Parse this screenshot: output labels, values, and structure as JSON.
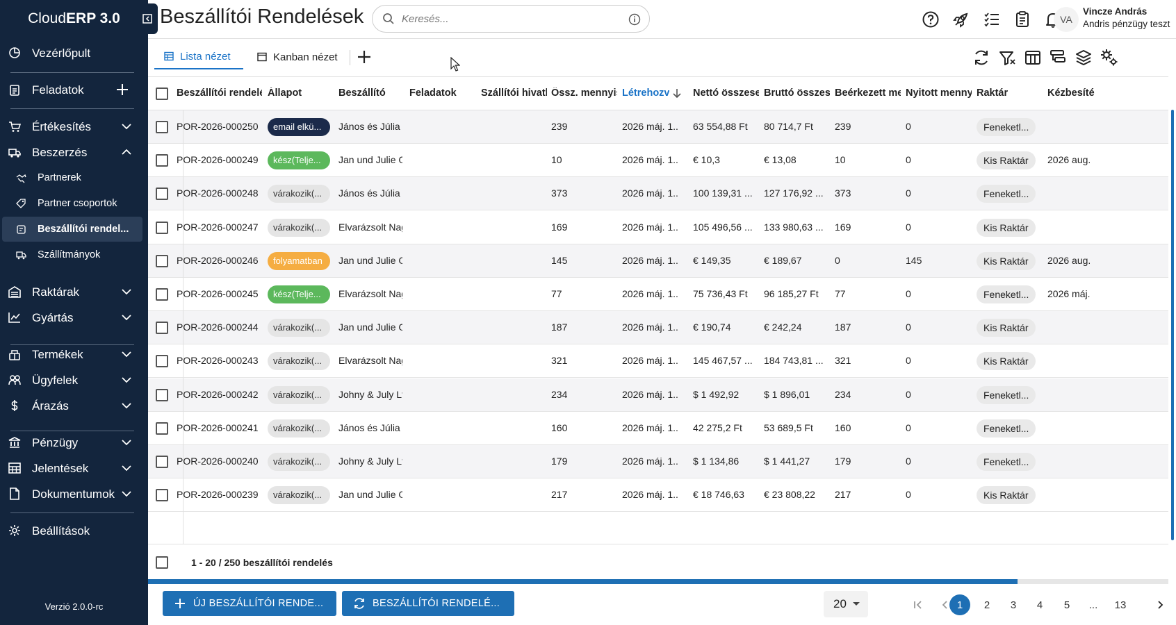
{
  "app": {
    "brand_light": "Cloud",
    "brand_bold": "ERP 3.0",
    "version": "Verzió 2.0.0-rc"
  },
  "sidebar": {
    "items": [
      {
        "label": "Vezérlőpult",
        "icon": "dashboard-icon"
      },
      {
        "label": "Feladatok",
        "icon": "clipboard-icon"
      },
      {
        "label": "Értékesítés",
        "icon": "cart-icon"
      },
      {
        "label": "Beszerzés",
        "icon": "truck-icon",
        "expanded": true
      },
      {
        "label": "Raktárak",
        "icon": "warehouse-icon"
      },
      {
        "label": "Gyártás",
        "icon": "chart-icon"
      },
      {
        "label": "Termékek",
        "icon": "products-icon"
      },
      {
        "label": "Ügyfelek",
        "icon": "people-icon"
      },
      {
        "label": "Árazás",
        "icon": "dollar-icon"
      },
      {
        "label": "Pénzügy",
        "icon": "bank-icon"
      },
      {
        "label": "Jelentések",
        "icon": "table-icon"
      },
      {
        "label": "Dokumentumok",
        "icon": "document-icon"
      },
      {
        "label": "Beállítások",
        "icon": "gear-icon"
      }
    ],
    "sub_items": [
      {
        "label": "Partnerek"
      },
      {
        "label": "Partner csoportok"
      },
      {
        "label": "Beszállítói rendel...",
        "active": true
      },
      {
        "label": "Szállítmányok"
      }
    ]
  },
  "header": {
    "title": "Beszállítói Rendelések",
    "search_placeholder": "Keresés...",
    "user_initials": "VA",
    "user_name": "Vincze András",
    "user_org": "Andris pénzügy teszt"
  },
  "tabs": [
    {
      "label": "Lista nézet",
      "active": true
    },
    {
      "label": "Kanban nézet",
      "active": false
    }
  ],
  "grid": {
    "columns": [
      "Beszállítói rendelés",
      "Állapot",
      "Beszállító",
      "Feladatok",
      "Szállítói hivatk",
      "Össz. mennyis",
      "Létrehozva",
      "Nettó összeser",
      "Bruttó összese",
      "Beérkezett mei",
      "Nyitott mennyi",
      "Raktár",
      "Kézbesíté"
    ],
    "sorted_column": "Létrehozva",
    "rows": [
      {
        "id": "POR-2026-000250",
        "status": "email elkü...",
        "status_type": "sent",
        "supplier": "János és Júlia S",
        "qty": "239",
        "created": "2026 máj. 1...",
        "net": "63 554,88  Ft",
        "gross": "80 714,7  Ft",
        "received": "239",
        "open": "0",
        "warehouse": "Feneketl...",
        "delivery": ""
      },
      {
        "id": "POR-2026-000249",
        "status": "kész(Telje...",
        "status_type": "done",
        "supplier": "Jan und Julie G",
        "qty": "10",
        "created": "2026 máj. 1...",
        "net": "€ 10,3",
        "gross": "€ 13,08",
        "received": "10",
        "open": "0",
        "warehouse": "Kis Raktár",
        "delivery": "2026 aug."
      },
      {
        "id": "POR-2026-000248",
        "status": "várakozik(...",
        "status_type": "waiting",
        "supplier": "János és Júlia S",
        "qty": "373",
        "created": "2026 máj. 1...",
        "net": "100 139,31 ...",
        "gross": "127 176,92 ...",
        "received": "373",
        "open": "0",
        "warehouse": "Feneketl...",
        "delivery": ""
      },
      {
        "id": "POR-2026-000247",
        "status": "várakozik(...",
        "status_type": "waiting",
        "supplier": "Elvarázsolt Nag",
        "qty": "169",
        "created": "2026 máj. 1...",
        "net": "105 496,56 ...",
        "gross": "133 980,63 ...",
        "received": "169",
        "open": "0",
        "warehouse": "Kis Raktár",
        "delivery": ""
      },
      {
        "id": "POR-2026-000246",
        "status": "folyamatban",
        "status_type": "progress",
        "supplier": "Jan und Julie G",
        "qty": "145",
        "created": "2026 máj. 1...",
        "net": "€ 149,35",
        "gross": "€ 189,67",
        "received": "0",
        "open": "145",
        "warehouse": "Kis Raktár",
        "delivery": "2026 aug."
      },
      {
        "id": "POR-2026-000245",
        "status": "kész(Telje...",
        "status_type": "done",
        "supplier": "Elvarázsolt Nag",
        "qty": "77",
        "created": "2026 máj. 1...",
        "net": "75 736,43  Ft",
        "gross": "96 185,27  Ft",
        "received": "77",
        "open": "0",
        "warehouse": "Feneketl...",
        "delivery": "2026 máj."
      },
      {
        "id": "POR-2026-000244",
        "status": "várakozik(...",
        "status_type": "waiting",
        "supplier": "Jan und Julie G",
        "qty": "187",
        "created": "2026 máj. 1...",
        "net": "€ 190,74",
        "gross": "€ 242,24",
        "received": "187",
        "open": "0",
        "warehouse": "Kis Raktár",
        "delivery": ""
      },
      {
        "id": "POR-2026-000243",
        "status": "várakozik(...",
        "status_type": "waiting",
        "supplier": "Elvarázsolt Nag",
        "qty": "321",
        "created": "2026 máj. 1...",
        "net": "145 467,57 ...",
        "gross": "184 743,81 ...",
        "received": "321",
        "open": "0",
        "warehouse": "Kis Raktár",
        "delivery": ""
      },
      {
        "id": "POR-2026-000242",
        "status": "várakozik(...",
        "status_type": "waiting",
        "supplier": "Johny & July Ltd",
        "qty": "234",
        "created": "2026 máj. 1...",
        "net": "$ 1 492,92",
        "gross": "$ 1 896,01",
        "received": "234",
        "open": "0",
        "warehouse": "Feneketl...",
        "delivery": ""
      },
      {
        "id": "POR-2026-000241",
        "status": "várakozik(...",
        "status_type": "waiting",
        "supplier": "János és Júlia S",
        "qty": "160",
        "created": "2026 máj. 1...",
        "net": "42 275,2  Ft",
        "gross": "53 689,5  Ft",
        "received": "160",
        "open": "0",
        "warehouse": "Feneketl...",
        "delivery": ""
      },
      {
        "id": "POR-2026-000240",
        "status": "várakozik(...",
        "status_type": "waiting",
        "supplier": "Johny & July Ltd",
        "qty": "179",
        "created": "2026 máj. 1...",
        "net": "$ 1 134,86",
        "gross": "$ 1 441,27",
        "received": "179",
        "open": "0",
        "warehouse": "Feneketl...",
        "delivery": ""
      },
      {
        "id": "POR-2026-000239",
        "status": "várakozik(...",
        "status_type": "waiting",
        "supplier": "Jan und Julie G",
        "qty": "217",
        "created": "2026 máj. 1...",
        "net": "€ 18 746,63",
        "gross": "€ 23 808,22",
        "received": "217",
        "open": "0",
        "warehouse": "Kis Raktár",
        "delivery": ""
      }
    ],
    "footer": "1 - 20 / 250 beszállítói rendelés"
  },
  "actions": {
    "new_order": "ÚJ BESZÁLLÍTÓI RENDE...",
    "refresh_orders": "BESZÁLLÍTÓI RENDELÉ..."
  },
  "pagination": {
    "page_size": "20",
    "pages": [
      "1",
      "2",
      "3",
      "4",
      "5",
      "...",
      "13"
    ],
    "current": "1"
  },
  "colors": {
    "sidebar_bg": "#13253d",
    "accent": "#1e6fb4",
    "status_sent": "#1b2a4a",
    "status_done": "#5cb85c",
    "status_progress": "#f5ad42",
    "status_waiting": "#e5e5e5"
  }
}
